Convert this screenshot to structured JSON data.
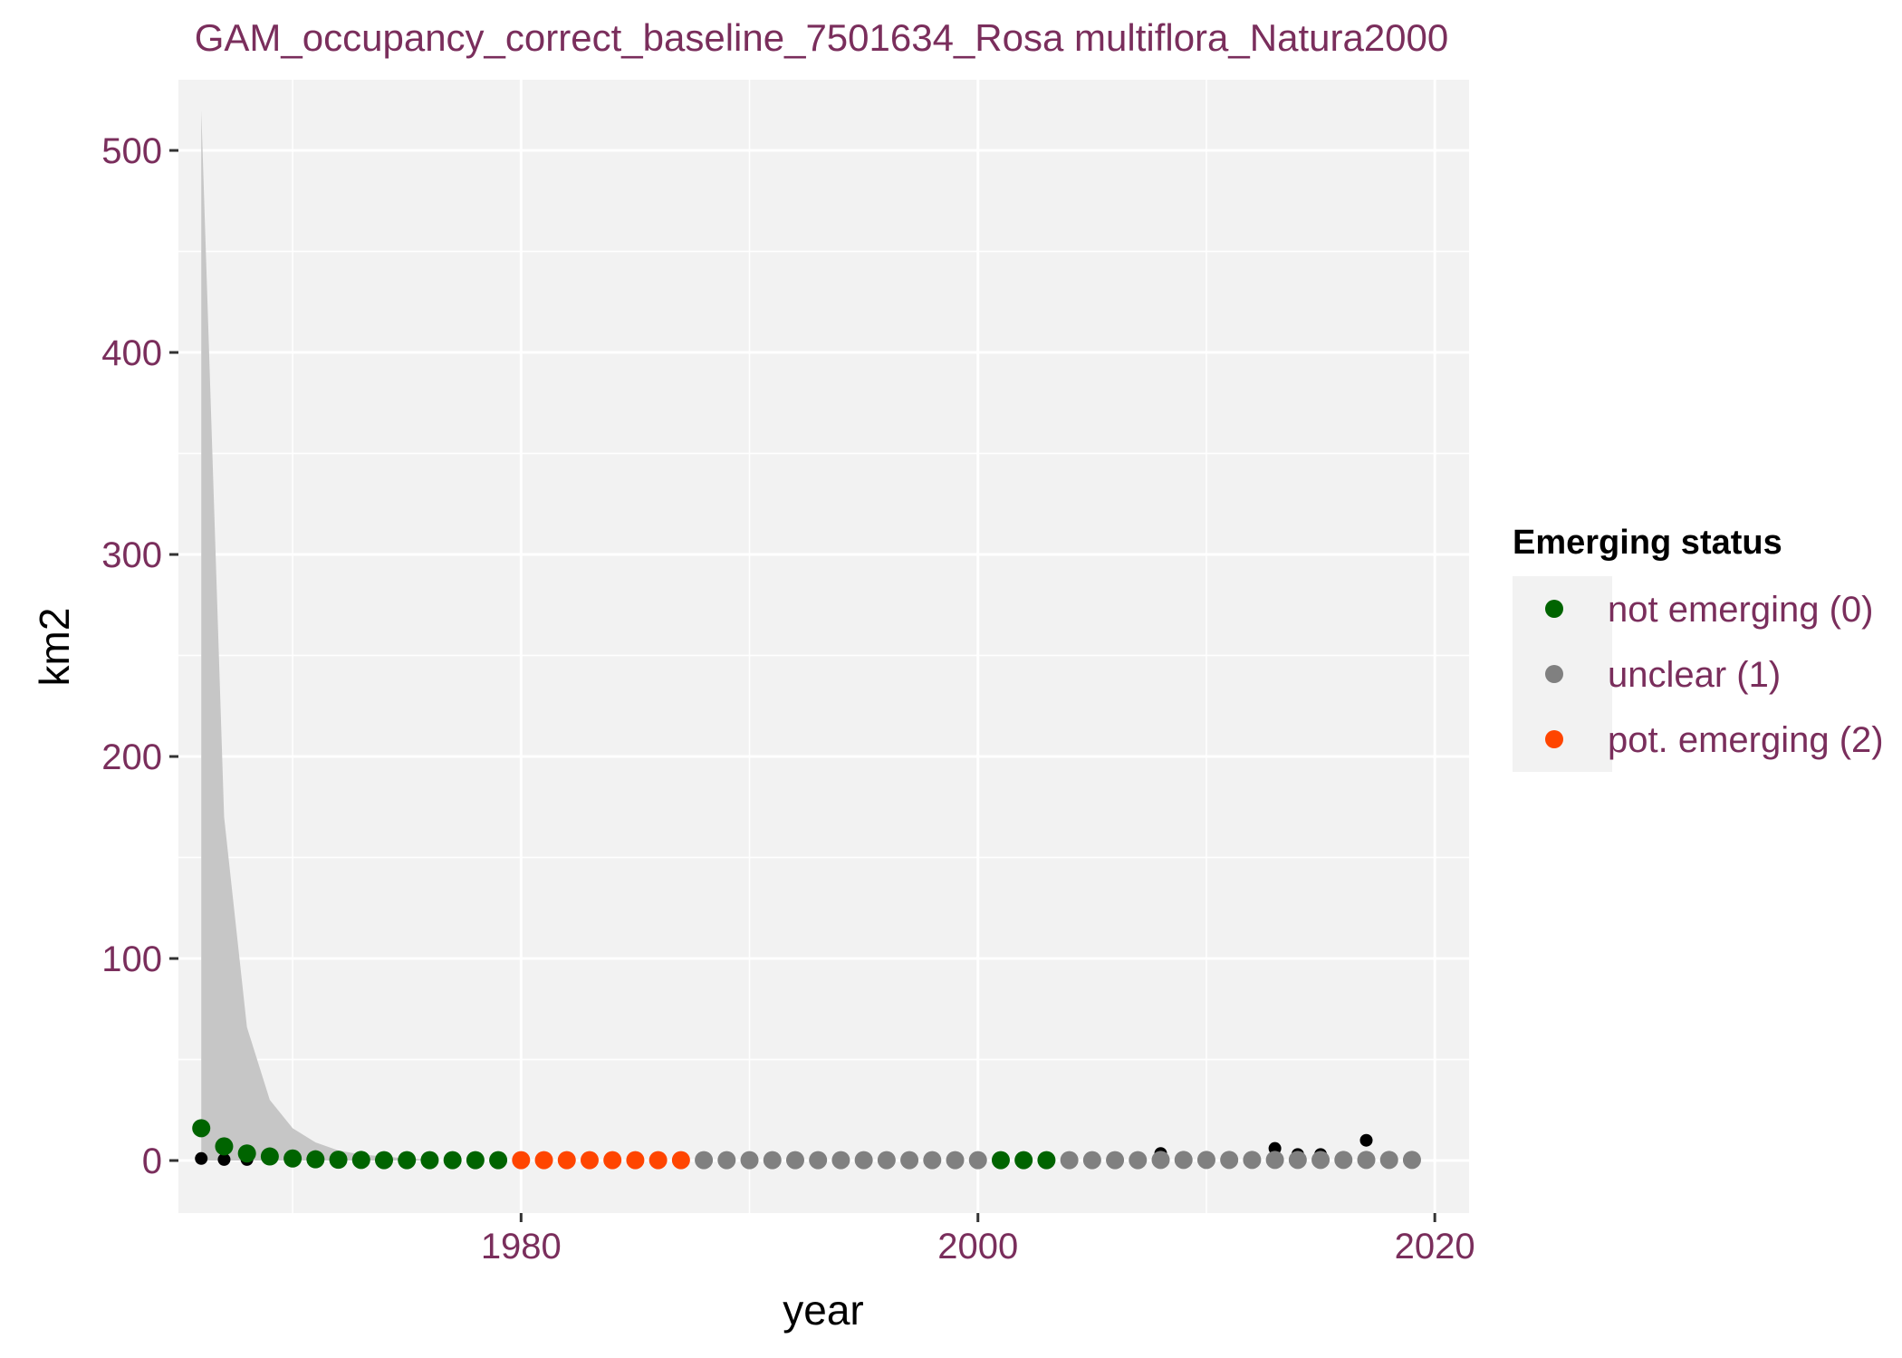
{
  "chart_data": {
    "type": "scatter",
    "title": "GAM_occupancy_correct_baseline_7501634_Rosa multiflora_Natura2000",
    "xlabel": "year",
    "ylabel": "km2",
    "xlim": [
      1965,
      2021.5
    ],
    "ylim": [
      -26,
      535
    ],
    "x_ticks": [
      1980,
      2000,
      2020
    ],
    "x_tick_labels": [
      "1980",
      "2000",
      "2020"
    ],
    "y_ticks": [
      0,
      100,
      200,
      300,
      400,
      500
    ],
    "y_tick_labels": [
      "0",
      "100",
      "200",
      "300",
      "400",
      "500"
    ],
    "grid": true,
    "legend": {
      "title": "Emerging status",
      "position": "right",
      "entries": [
        {
          "label": "not emerging (0)",
          "color": "#006400"
        },
        {
          "label": "unclear (1)",
          "color": "#808080"
        },
        {
          "label": "pot. emerging (2)",
          "color": "#ff4500"
        }
      ]
    },
    "colors": {
      "panel": "#f2f2f2",
      "grid": "#ffffff",
      "ribbon": "#c6c6c6",
      "observed": "#000000"
    },
    "ribbon": {
      "x": [
        1966,
        1967,
        1968,
        1969,
        1970,
        1971,
        1972,
        1973,
        1974,
        1975,
        1976
      ],
      "upper": [
        520,
        170,
        66,
        30,
        16,
        9,
        5,
        3,
        2,
        1,
        0.5
      ],
      "lower": [
        0,
        0,
        0,
        0,
        0,
        0,
        0,
        0,
        0,
        0,
        0
      ]
    },
    "observed_points": {
      "x": [
        1966,
        1967,
        1968,
        2002,
        2008,
        2009,
        2012,
        2013,
        2014,
        2015,
        2016,
        2017,
        2018
      ],
      "y": [
        1,
        0.5,
        0.5,
        1,
        3.5,
        1,
        1,
        6,
        3,
        3,
        1,
        10,
        1
      ]
    },
    "series": [
      {
        "name": "not emerging (0)",
        "x": [
          1966,
          1967,
          1968,
          1969,
          1970,
          1971,
          1972,
          1973,
          1974,
          1975,
          1976,
          1977,
          1978,
          1979,
          2001,
          2002,
          2003
        ],
        "y": [
          16,
          7,
          3.5,
          2,
          1,
          0.6,
          0.4,
          0.3,
          0.2,
          0.2,
          0.2,
          0.2,
          0.2,
          0.2,
          0.2,
          0.2,
          0.2
        ]
      },
      {
        "name": "unclear (1)",
        "x": [
          1988,
          1989,
          1990,
          1991,
          1992,
          1993,
          1994,
          1995,
          1996,
          1997,
          1998,
          1999,
          2000,
          2004,
          2005,
          2006,
          2007,
          2008,
          2009,
          2010,
          2011,
          2012,
          2013,
          2014,
          2015,
          2016,
          2017,
          2018,
          2019
        ],
        "y": [
          0.2,
          0.2,
          0.2,
          0.2,
          0.2,
          0.2,
          0.2,
          0.2,
          0.2,
          0.2,
          0.2,
          0.2,
          0.2,
          0.2,
          0.2,
          0.2,
          0.2,
          0.3,
          0.3,
          0.3,
          0.3,
          0.3,
          0.3,
          0.3,
          0.3,
          0.3,
          0.3,
          0.3,
          0.3
        ]
      },
      {
        "name": "pot. emerging (2)",
        "x": [
          1980,
          1981,
          1982,
          1983,
          1984,
          1985,
          1986,
          1987
        ],
        "y": [
          0.2,
          0.2,
          0.2,
          0.2,
          0.2,
          0.2,
          0.2,
          0.2
        ]
      }
    ]
  }
}
